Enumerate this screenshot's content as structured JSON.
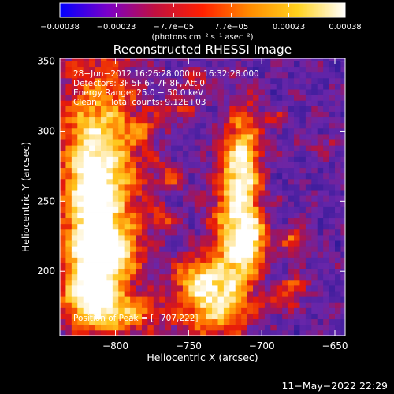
{
  "chart_data": {
    "type": "heatmap",
    "title": "Reconstructed RHESSI Image",
    "xlabel": "Heliocentric X (arcsec)",
    "ylabel": "Heliocentric Y (arcsec)",
    "xlim": [
      -838,
      -643
    ],
    "ylim": [
      154,
      352
    ],
    "x_ticks": [
      -800,
      -750,
      -700,
      -650
    ],
    "x_tick_labels": [
      "−800",
      "−750",
      "−700",
      "−650"
    ],
    "y_ticks": [
      200,
      250,
      300,
      350
    ],
    "y_tick_labels": [
      "200",
      "250",
      "300",
      "350"
    ],
    "colorbar": {
      "range": [
        -0.00038,
        0.00038
      ],
      "tick_values": [
        -0.00038,
        -0.00023,
        -7.7e-05,
        7.7e-05,
        0.00023,
        0.00038
      ],
      "tick_labels": [
        "−0.00038",
        "−0.00023",
        "−7.7e−05",
        "7.7e−05",
        "0.00023",
        "0.00038"
      ],
      "units": "(photons cm⁻² s⁻¹ asec⁻²)",
      "colors": [
        "#0000ff",
        "#7a00c8",
        "#c01040",
        "#ff2000",
        "#ff8c00",
        "#ffd21e",
        "#ffffff"
      ]
    },
    "annotations": [
      "28−Jun−2012 16:26:28.000 to 16:32:28.000",
      "Detectors: 3F 5F 6F 7F 8F, Att 0",
      "Energy Range: 25.0 − 50.0 keV",
      "Clean     Total counts: 9.12E+03"
    ],
    "peak_label": "Position of Peak = [−707,222]",
    "peak_position": [
      -707,
      222
    ],
    "features": [
      {
        "x": -810,
        "y": 272,
        "sx": 20,
        "sy": 58,
        "amp": 0.85
      },
      {
        "x": -818,
        "y": 255,
        "sx": 11,
        "sy": 30,
        "amp": 0.45
      },
      {
        "x": -808,
        "y": 213,
        "sx": 14,
        "sy": 13,
        "amp": 0.9
      },
      {
        "x": -818,
        "y": 185,
        "sx": 13,
        "sy": 14,
        "amp": 0.75
      },
      {
        "x": -796,
        "y": 170,
        "sx": 22,
        "sy": 10,
        "amp": 0.55
      },
      {
        "x": -718,
        "y": 232,
        "sx": 11,
        "sy": 40,
        "amp": 0.8
      },
      {
        "x": -707,
        "y": 222,
        "sx": 8,
        "sy": 13,
        "amp": 0.6
      },
      {
        "x": -712,
        "y": 282,
        "sx": 8,
        "sy": 26,
        "amp": 0.65
      },
      {
        "x": -735,
        "y": 178,
        "sx": 15,
        "sy": 18,
        "amp": 0.75
      },
      {
        "x": -745,
        "y": 196,
        "sx": 10,
        "sy": 10,
        "amp": 0.5
      },
      {
        "x": -678,
        "y": 222,
        "sx": 6,
        "sy": 6,
        "amp": 0.55
      },
      {
        "x": -678,
        "y": 190,
        "sx": 6,
        "sy": 5,
        "amp": 0.5
      },
      {
        "x": -762,
        "y": 268,
        "sx": 7,
        "sy": 7,
        "amp": 0.4
      },
      {
        "x": -780,
        "y": 300,
        "sx": 6,
        "sy": 5,
        "amp": 0.35
      },
      {
        "x": -757,
        "y": 315,
        "sx": 8,
        "sy": 6,
        "amp": 0.35
      },
      {
        "x": -745,
        "y": 335,
        "sx": 8,
        "sy": 6,
        "amp": 0.3
      },
      {
        "x": -692,
        "y": 308,
        "sx": 6,
        "sy": 5,
        "amp": 0.3
      },
      {
        "x": -768,
        "y": 238,
        "sx": 6,
        "sy": 6,
        "amp": 0.35
      },
      {
        "x": -688,
        "y": 178,
        "sx": 8,
        "sy": 6,
        "amp": 0.4
      },
      {
        "x": -660,
        "y": 290,
        "sx": 9,
        "sy": 6,
        "amp": 0.2
      }
    ]
  },
  "footer": {
    "timestamp": "11−May−2022 22:29"
  }
}
